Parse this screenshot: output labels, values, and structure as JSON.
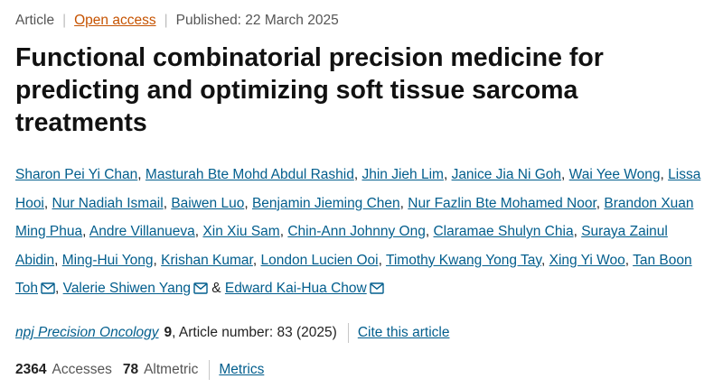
{
  "meta": {
    "article_type": "Article",
    "access": "Open access",
    "published": "Published: 22 March 2025"
  },
  "title": "Functional combinatorial precision medicine for predicting and optimizing soft tissue sarcoma treatments",
  "authors": [
    "Sharon Pei Yi Chan",
    "Masturah Bte Mohd Abdul Rashid",
    "Jhin Jieh Lim",
    "Janice Jia Ni Goh",
    "Wai Yee Wong",
    "Lissa Hooi",
    "Nur Nadiah Ismail",
    "Baiwen Luo",
    "Benjamin Jieming Chen",
    "Nur Fazlin Bte Mohamed Noor",
    "Brandon Xuan Ming Phua",
    "Andre Villanueva",
    "Xin Xiu Sam",
    "Chin-Ann Johnny Ong",
    "Claramae Shulyn Chia",
    "Suraya Zainul Abidin",
    "Ming-Hui Yong",
    "Krishan Kumar",
    "London Lucien Ooi",
    "Timothy Kwang Yong Tay",
    "Xing Yi Woo",
    "Tan Boon Toh",
    "Valerie Shiwen Yang",
    "Edward Kai-Hua Chow"
  ],
  "author_separator": ",",
  "last_author_joiner": "&",
  "icons": {
    "corresponding_author": "mail-icon"
  },
  "journal": {
    "name": "npj Precision Oncology",
    "volume": "9",
    "article_number": ", Article number: 83 (2025)",
    "cite_label": "Cite this article"
  },
  "metrics": {
    "accesses_count": "2364",
    "accesses_label": "Accesses",
    "altmetric_count": "78",
    "altmetric_label": "Altmetric",
    "metrics_link": "Metrics"
  },
  "colors": {
    "link": "#025e8d",
    "open_access": "#c65301",
    "separator": "#c7c7c7"
  }
}
